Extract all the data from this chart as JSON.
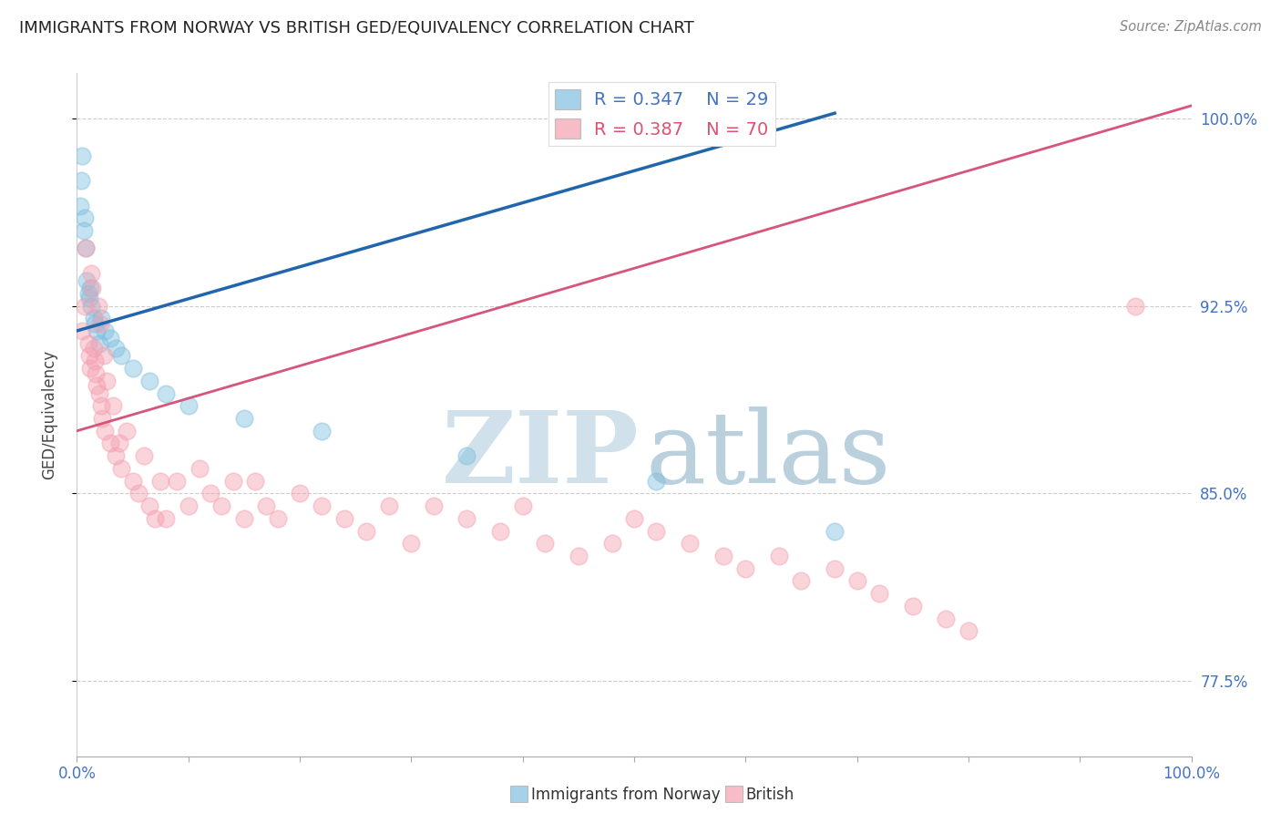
{
  "title": "IMMIGRANTS FROM NORWAY VS BRITISH GED/EQUIVALENCY CORRELATION CHART",
  "source": "Source: ZipAtlas.com",
  "ylabel": "GED/Equivalency",
  "legend_labels": [
    "Immigrants from Norway",
    "British"
  ],
  "r_norway": 0.347,
  "n_norway": 29,
  "r_british": 0.387,
  "n_british": 70,
  "norway_color": "#7fbfdf",
  "british_color": "#f5a0b0",
  "norway_line_color": "#2166ac",
  "british_line_color": "#d6557a",
  "norway_x": [
    0.3,
    0.4,
    0.5,
    0.6,
    0.7,
    0.8,
    0.9,
    1.0,
    1.1,
    1.2,
    1.3,
    1.5,
    1.6,
    1.8,
    2.0,
    2.2,
    2.5,
    3.0,
    3.5,
    4.0,
    5.0,
    6.5,
    8.0,
    10.0,
    15.0,
    22.0,
    35.0,
    52.0,
    68.0
  ],
  "norway_y": [
    96.5,
    97.5,
    98.5,
    95.5,
    96.0,
    94.8,
    93.5,
    93.0,
    92.8,
    93.2,
    92.5,
    92.0,
    91.8,
    91.5,
    91.0,
    92.0,
    91.5,
    91.2,
    90.8,
    90.5,
    90.0,
    89.5,
    89.0,
    88.5,
    88.0,
    87.5,
    86.5,
    85.5,
    83.5
  ],
  "british_x": [
    0.5,
    0.7,
    0.8,
    1.0,
    1.1,
    1.2,
    1.3,
    1.4,
    1.5,
    1.6,
    1.7,
    1.8,
    1.9,
    2.0,
    2.1,
    2.2,
    2.3,
    2.4,
    2.5,
    2.7,
    3.0,
    3.2,
    3.5,
    3.8,
    4.0,
    4.5,
    5.0,
    5.5,
    6.0,
    6.5,
    7.0,
    7.5,
    8.0,
    9.0,
    10.0,
    11.0,
    12.0,
    13.0,
    14.0,
    15.0,
    16.0,
    17.0,
    18.0,
    20.0,
    22.0,
    24.0,
    26.0,
    28.0,
    30.0,
    32.0,
    35.0,
    38.0,
    40.0,
    42.0,
    45.0,
    48.0,
    50.0,
    52.0,
    55.0,
    58.0,
    60.0,
    63.0,
    65.0,
    68.0,
    70.0,
    72.0,
    75.0,
    78.0,
    80.0,
    95.0
  ],
  "british_y": [
    91.5,
    92.5,
    94.8,
    91.0,
    90.5,
    90.0,
    93.8,
    93.2,
    90.8,
    90.3,
    89.8,
    89.3,
    92.5,
    89.0,
    91.8,
    88.5,
    88.0,
    90.5,
    87.5,
    89.5,
    87.0,
    88.5,
    86.5,
    87.0,
    86.0,
    87.5,
    85.5,
    85.0,
    86.5,
    84.5,
    84.0,
    85.5,
    84.0,
    85.5,
    84.5,
    86.0,
    85.0,
    84.5,
    85.5,
    84.0,
    85.5,
    84.5,
    84.0,
    85.0,
    84.5,
    84.0,
    83.5,
    84.5,
    83.0,
    84.5,
    84.0,
    83.5,
    84.5,
    83.0,
    82.5,
    83.0,
    84.0,
    83.5,
    83.0,
    82.5,
    82.0,
    82.5,
    81.5,
    82.0,
    81.5,
    81.0,
    80.5,
    80.0,
    79.5,
    92.5
  ],
  "norway_line_x0": 0.0,
  "norway_line_y0": 91.5,
  "norway_line_x1": 68.0,
  "norway_line_y1": 100.2,
  "british_line_x0": 0.0,
  "british_line_y0": 87.5,
  "british_line_x1": 100.0,
  "british_line_y1": 100.5,
  "xmin": 0.0,
  "xmax": 100.0,
  "ymin": 74.5,
  "ymax": 101.8,
  "yticks": [
    77.5,
    85.0,
    92.5,
    100.0
  ],
  "watermark_zip": "ZIP",
  "watermark_atlas": "atlas",
  "background_color": "#ffffff"
}
